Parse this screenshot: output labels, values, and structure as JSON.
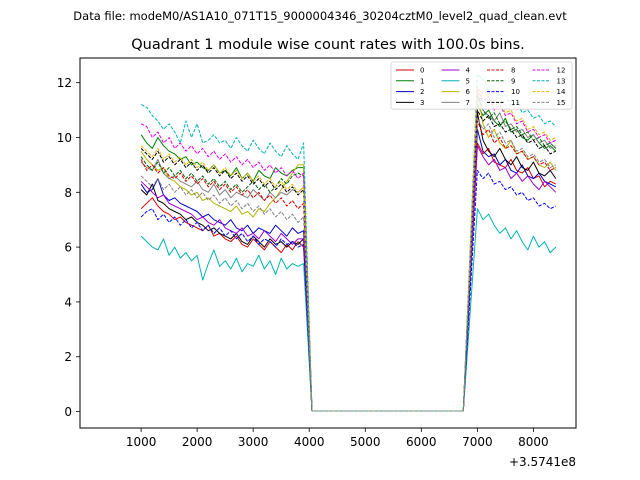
{
  "chart_data": {
    "type": "line",
    "suptitle": "Data file: modeM0/AS1A10_071T15_9000004346_30204cztM0_level2_quad_clean.evt",
    "title": "Quadrant 1 module wise count rates with 100.0s bins.",
    "xlabel": "",
    "ylabel": "",
    "offset_label": "+3.5741e8",
    "xlim": [
      -90,
      8760
    ],
    "ylim": [
      -0.6,
      12.9
    ],
    "xticks": [
      1000,
      2000,
      3000,
      4000,
      5000,
      6000,
      7000,
      8000
    ],
    "yticks": [
      0,
      2,
      4,
      6,
      8,
      10,
      12
    ],
    "legend": {
      "position": "top-right",
      "ncol": 4
    },
    "segments": [
      {
        "x_start": 1000,
        "x_end": 3900,
        "step": 100
      },
      {
        "x_start": 4050,
        "x_end": 6950,
        "step": 300,
        "flat": 0.02
      },
      {
        "x_start": 7000,
        "x_end": 8400,
        "step": 100
      }
    ],
    "series": [
      {
        "name": "0",
        "color": "#d40000",
        "dashed": false,
        "start": [
          7.4,
          7.6,
          7.8,
          7.5,
          7.3,
          7.2,
          7.0,
          7.1,
          6.9,
          6.8,
          6.7,
          6.6,
          6.8,
          6.4,
          6.5,
          6.3,
          6.2,
          6.4,
          6.1,
          6.0,
          6.3,
          6.1,
          5.9,
          6.2,
          6.0,
          5.8,
          6.1,
          5.9,
          6.2,
          6.0
        ],
        "end": [
          9.8,
          9.4,
          9.6,
          9.1,
          9.0,
          8.9,
          9.2,
          8.8,
          8.7,
          8.9,
          8.5,
          8.6,
          8.2,
          8.4,
          8.3
        ]
      },
      {
        "name": "1",
        "color": "#008000",
        "dashed": false,
        "start": [
          10.1,
          9.8,
          9.6,
          10.0,
          9.7,
          9.5,
          9.4,
          9.2,
          9.3,
          9.0,
          9.1,
          8.9,
          8.8,
          9.0,
          8.7,
          8.8,
          8.6,
          8.9,
          8.5,
          8.7,
          8.4,
          8.8,
          8.6,
          8.5,
          8.9,
          8.7,
          8.6,
          8.8,
          8.9,
          8.9
        ],
        "end": [
          11.2,
          10.8,
          11.0,
          10.6,
          10.4,
          10.7,
          10.2,
          10.3,
          10.0,
          9.9,
          10.1,
          9.8,
          9.6,
          9.7,
          9.5
        ]
      },
      {
        "name": "2",
        "color": "#0000cc",
        "dashed": false,
        "start": [
          8.3,
          8.0,
          8.1,
          8.5,
          7.9,
          7.7,
          7.8,
          7.6,
          7.5,
          7.4,
          7.3,
          7.1,
          7.2,
          7.0,
          6.9,
          6.8,
          7.0,
          6.7,
          6.6,
          6.8,
          6.5,
          6.7,
          6.6,
          6.5,
          6.8,
          6.6,
          6.4,
          6.7,
          6.5,
          6.6
        ],
        "end": [
          10.3,
          9.5,
          9.3,
          9.4,
          9.0,
          9.2,
          8.8,
          8.7,
          9.0,
          8.6,
          8.5,
          8.7,
          8.4,
          8.3,
          8.2
        ]
      },
      {
        "name": "3",
        "color": "#000000",
        "dashed": false,
        "start": [
          8.1,
          7.9,
          8.3,
          7.7,
          7.6,
          7.4,
          7.3,
          7.2,
          7.0,
          7.1,
          6.9,
          6.8,
          6.6,
          6.7,
          6.5,
          6.4,
          6.3,
          6.5,
          6.2,
          6.1,
          6.4,
          6.2,
          6.0,
          6.3,
          6.1,
          6.2,
          6.0,
          6.2,
          6.1,
          6.3
        ],
        "end": [
          10.9,
          9.9,
          9.5,
          9.3,
          9.6,
          9.2,
          9.0,
          9.3,
          8.9,
          8.8,
          9.1,
          8.7,
          8.6,
          8.8,
          8.5
        ]
      },
      {
        "name": "4",
        "color": "#9900cc",
        "dashed": false,
        "start": [
          8.4,
          8.2,
          8.0,
          7.8,
          7.9,
          7.6,
          7.5,
          7.4,
          7.3,
          7.2,
          7.0,
          7.1,
          6.9,
          6.8,
          7.0,
          6.7,
          6.6,
          6.5,
          6.7,
          6.4,
          6.5,
          6.3,
          6.6,
          6.4,
          6.2,
          6.5,
          6.3,
          6.1,
          6.3,
          6.3
        ],
        "end": [
          9.7,
          9.3,
          9.0,
          9.2,
          8.8,
          8.9,
          8.5,
          8.7,
          8.4,
          8.6,
          8.3,
          8.1,
          8.4,
          8.2,
          8.0
        ]
      },
      {
        "name": "5",
        "color": "#00b3b3",
        "dashed": false,
        "start": [
          6.4,
          6.2,
          6.0,
          5.9,
          6.3,
          5.7,
          6.0,
          5.6,
          5.8,
          5.5,
          5.7,
          4.8,
          5.4,
          5.9,
          5.3,
          5.5,
          5.2,
          5.6,
          5.1,
          5.4,
          5.3,
          5.7,
          5.2,
          5.5,
          5.0,
          5.6,
          5.2,
          5.4,
          5.3,
          5.4
        ],
        "end": [
          7.4,
          7.0,
          7.2,
          6.8,
          6.5,
          6.7,
          6.3,
          6.6,
          6.2,
          5.9,
          6.4,
          6.0,
          6.2,
          5.8,
          6.0
        ]
      },
      {
        "name": "6",
        "color": "#b3b300",
        "dashed": false,
        "start": [
          9.5,
          9.2,
          9.0,
          8.8,
          8.9,
          8.5,
          8.4,
          8.2,
          8.1,
          7.9,
          8.0,
          7.7,
          7.8,
          7.6,
          7.5,
          7.4,
          7.3,
          7.5,
          7.2,
          7.3,
          7.1,
          7.4,
          7.3,
          7.6,
          7.8,
          8.1,
          8.4,
          8.7,
          9.0,
          9.0
        ],
        "end": [
          11.7,
          10.5,
          10.0,
          10.3,
          9.8,
          9.6,
          9.9,
          9.4,
          9.5,
          9.2,
          9.3,
          9.0,
          8.9,
          9.1,
          8.8
        ]
      },
      {
        "name": "7",
        "color": "#808080",
        "dashed": false,
        "start": [
          9.1,
          8.9,
          8.8,
          9.2,
          8.7,
          8.5,
          8.6,
          8.4,
          8.3,
          8.2,
          8.4,
          8.1,
          8.0,
          8.3,
          7.9,
          8.1,
          7.8,
          8.0,
          7.9,
          7.8,
          8.1,
          7.9,
          7.7,
          8.0,
          7.8,
          8.0,
          7.9,
          8.1,
          8.0,
          8.2
        ],
        "end": [
          11.5,
          11.0,
          10.8,
          10.6,
          10.9,
          10.4,
          10.5,
          10.2,
          10.3,
          10.0,
          10.1,
          9.8,
          9.9,
          9.6,
          9.7
        ]
      },
      {
        "name": "8",
        "color": "#d40000",
        "dashed": true,
        "start": [
          9.2,
          8.8,
          9.0,
          8.7,
          8.9,
          8.6,
          8.5,
          8.7,
          8.4,
          8.6,
          8.3,
          8.5,
          8.2,
          8.4,
          8.1,
          8.3,
          8.0,
          8.2,
          7.9,
          8.1,
          7.8,
          8.0,
          7.7,
          7.9,
          7.6,
          7.8,
          7.5,
          7.7,
          7.4,
          7.6
        ],
        "end": [
          10.6,
          10.1,
          10.3,
          9.8,
          10.0,
          9.6,
          9.7,
          9.4,
          9.5,
          9.2,
          9.3,
          9.0,
          9.1,
          8.8,
          8.9
        ]
      },
      {
        "name": "9",
        "color": "#006400",
        "dashed": true,
        "start": [
          9.3,
          9.0,
          8.8,
          9.1,
          8.7,
          8.9,
          8.6,
          8.8,
          8.5,
          8.7,
          8.4,
          8.6,
          8.3,
          8.5,
          8.2,
          8.4,
          8.1,
          8.3,
          8.0,
          8.2,
          8.4,
          8.1,
          8.3,
          8.0,
          8.2,
          8.5,
          8.3,
          8.6,
          8.7,
          8.6
        ],
        "end": [
          11.6,
          11.0,
          10.7,
          10.9,
          10.5,
          10.6,
          10.3,
          10.4,
          10.1,
          10.2,
          9.9,
          10.0,
          9.7,
          9.8,
          9.6
        ]
      },
      {
        "name": "10",
        "color": "#0000ff",
        "dashed": true,
        "start": [
          7.1,
          7.3,
          7.4,
          7.0,
          7.2,
          6.9,
          7.1,
          6.8,
          7.0,
          6.7,
          6.9,
          6.6,
          6.8,
          6.5,
          6.7,
          6.4,
          6.6,
          6.3,
          6.5,
          6.2,
          6.4,
          6.1,
          6.3,
          6.2,
          6.0,
          6.3,
          6.1,
          6.2,
          6.0,
          6.1
        ],
        "end": [
          8.8,
          8.5,
          8.7,
          8.3,
          8.4,
          8.1,
          8.2,
          7.9,
          8.0,
          7.7,
          7.8,
          7.5,
          7.6,
          7.4,
          7.5
        ]
      },
      {
        "name": "11",
        "color": "#000000",
        "dashed": true,
        "start": [
          9.6,
          9.4,
          9.2,
          9.5,
          9.1,
          9.3,
          9.0,
          9.2,
          8.9,
          9.1,
          8.8,
          9.0,
          8.7,
          8.9,
          8.6,
          8.8,
          8.5,
          8.7,
          8.4,
          8.6,
          8.3,
          8.5,
          8.2,
          8.4,
          8.1,
          8.3,
          8.0,
          8.2,
          7.9,
          8.1
        ],
        "end": [
          11.0,
          10.6,
          10.8,
          10.4,
          10.5,
          10.2,
          10.3,
          10.0,
          10.1,
          9.8,
          9.9,
          9.6,
          9.7,
          9.4,
          9.5
        ]
      },
      {
        "name": "12",
        "color": "#e600e6",
        "dashed": true,
        "start": [
          10.5,
          10.4,
          10.0,
          10.2,
          9.8,
          10.0,
          9.6,
          9.8,
          9.5,
          9.7,
          9.4,
          9.6,
          9.3,
          9.5,
          9.2,
          9.4,
          9.1,
          9.3,
          9.0,
          9.2,
          8.9,
          9.1,
          8.8,
          9.0,
          8.7,
          8.9,
          8.6,
          8.8,
          8.5,
          8.7
        ],
        "end": [
          11.8,
          11.3,
          11.5,
          11.0,
          11.2,
          10.8,
          10.9,
          10.5,
          10.6,
          10.2,
          10.3,
          10.0,
          10.1,
          9.8,
          9.9
        ]
      },
      {
        "name": "13",
        "color": "#00b3b3",
        "dashed": true,
        "start": [
          11.2,
          11.1,
          10.8,
          10.6,
          10.3,
          10.5,
          10.2,
          9.8,
          10.6,
          10.0,
          10.5,
          9.8,
          9.9,
          10.1,
          9.8,
          9.9,
          9.6,
          10.0,
          9.7,
          9.5,
          9.9,
          9.6,
          9.4,
          9.8,
          9.5,
          9.3,
          9.7,
          9.4,
          9.2,
          9.8
        ],
        "end": [
          12.3,
          12.1,
          11.7,
          11.9,
          11.4,
          11.6,
          11.1,
          11.3,
          10.9,
          11.0,
          10.7,
          10.8,
          10.5,
          10.6,
          10.4
        ]
      },
      {
        "name": "14",
        "color": "#e6b800",
        "dashed": true,
        "start": [
          9.7,
          9.5,
          9.3,
          9.6,
          9.2,
          9.4,
          9.1,
          9.3,
          9.0,
          9.2,
          8.9,
          9.1,
          8.8,
          9.0,
          8.7,
          8.9,
          8.6,
          8.8,
          8.5,
          8.7,
          8.4,
          8.6,
          8.3,
          8.5,
          8.2,
          8.4,
          8.1,
          8.3,
          8.0,
          8.2
        ],
        "end": [
          11.9,
          11.4,
          11.6,
          11.1,
          11.3,
          10.9,
          11.0,
          10.6,
          10.7,
          10.3,
          10.4,
          10.1,
          10.2,
          9.9,
          10.0
        ]
      },
      {
        "name": "15",
        "color": "#808080",
        "dashed": true,
        "start": [
          8.6,
          8.4,
          8.2,
          8.5,
          8.1,
          8.3,
          8.0,
          8.2,
          7.9,
          8.1,
          7.8,
          8.0,
          7.7,
          7.9,
          7.6,
          7.8,
          7.5,
          7.7,
          7.4,
          7.6,
          7.3,
          7.5,
          7.2,
          7.4,
          7.1,
          7.3,
          7.0,
          7.2,
          6.9,
          7.1
        ],
        "end": [
          10.7,
          10.3,
          10.5,
          10.0,
          10.2,
          9.8,
          9.9,
          9.5,
          9.6,
          9.3,
          9.4,
          9.1,
          9.2,
          8.9,
          9.0
        ]
      }
    ]
  }
}
